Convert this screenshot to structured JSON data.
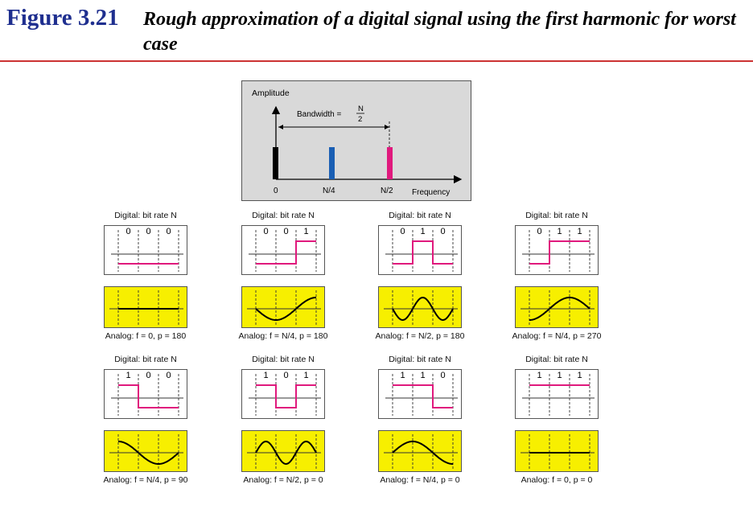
{
  "figure": {
    "label": "Figure 3.21",
    "caption": "Rough approximation of a digital signal using the first harmonic for worst case"
  },
  "spectrum": {
    "y_axis_label": "Amplitude",
    "x_axis_label": "Frequency",
    "bandwidth_label": "Bandwidth = ",
    "bandwidth_numerator": "N",
    "bandwidth_denominator": "2",
    "ticks": [
      "0",
      "N/4",
      "N/2"
    ],
    "bars": [
      {
        "tick": "0",
        "color": "#000000"
      },
      {
        "tick": "N/4",
        "color": "#1a5fb4"
      },
      {
        "tick": "N/2",
        "color": "#e0197d"
      }
    ]
  },
  "pairs": [
    {
      "digital_label": "Digital: bit rate N",
      "bits": [
        "0",
        "0",
        "0"
      ],
      "analog_label": "Analog: f = 0, p = 180",
      "f": 0,
      "p": 180
    },
    {
      "digital_label": "Digital: bit rate N",
      "bits": [
        "0",
        "0",
        "1"
      ],
      "analog_label": "Analog: f = N/4, p = 180",
      "f": 0.25,
      "p": 180
    },
    {
      "digital_label": "Digital: bit rate N",
      "bits": [
        "0",
        "1",
        "0"
      ],
      "analog_label": "Analog: f = N/2, p = 180",
      "f": 0.5,
      "p": 180
    },
    {
      "digital_label": "Digital: bit rate N",
      "bits": [
        "0",
        "1",
        "1"
      ],
      "analog_label": "Analog: f = N/4, p = 270",
      "f": 0.25,
      "p": 270
    },
    {
      "digital_label": "Digital: bit rate N",
      "bits": [
        "1",
        "0",
        "0"
      ],
      "analog_label": "Analog: f = N/4, p = 90",
      "f": 0.25,
      "p": 90
    },
    {
      "digital_label": "Digital: bit rate N",
      "bits": [
        "1",
        "0",
        "1"
      ],
      "analog_label": "Analog: f = N/2, p = 0",
      "f": 0.5,
      "p": 0
    },
    {
      "digital_label": "Digital: bit rate N",
      "bits": [
        "1",
        "1",
        "0"
      ],
      "analog_label": "Analog: f = N/4, p = 0",
      "f": 0.25,
      "p": 0
    },
    {
      "digital_label": "Digital: bit rate N",
      "bits": [
        "1",
        "1",
        "1"
      ],
      "analog_label": "Analog: f = 0, p = 0",
      "f": 0,
      "p": 0
    }
  ],
  "colors": {
    "digital_signal": "#e0197d",
    "analog_background": "#f7ef00",
    "title_blue": "#1f2f8f",
    "rule": "#cc3333"
  }
}
